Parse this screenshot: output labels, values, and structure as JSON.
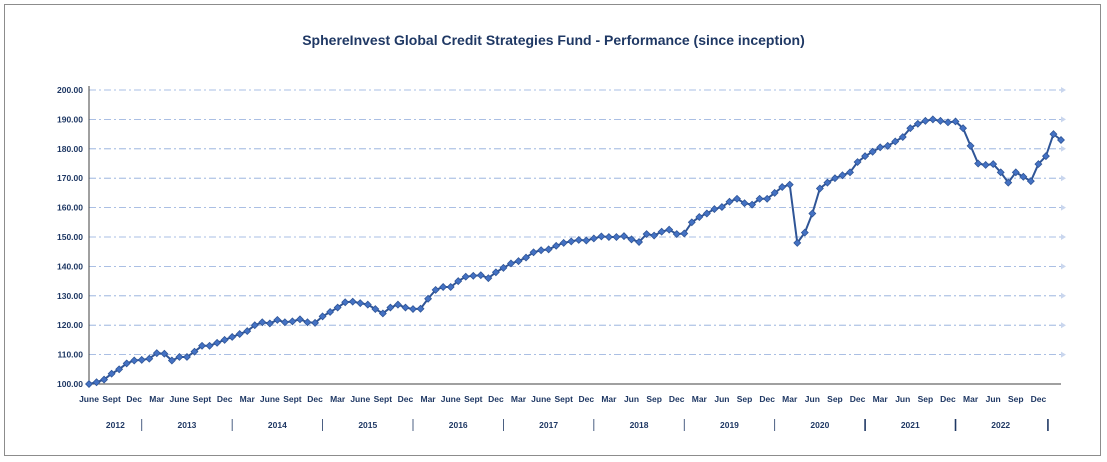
{
  "chart_data": {
    "type": "line",
    "title": "SphereInvest Global Credit Strategies Fund - Performance (since inception)",
    "xlabel": "",
    "ylabel": "",
    "ylim": [
      100,
      200
    ],
    "yticks": [
      "100.00",
      "110.00",
      "120.00",
      "130.00",
      "140.00",
      "150.00",
      "160.00",
      "170.00",
      "180.00",
      "190.00",
      "200.00"
    ],
    "grid": true,
    "legend": "none",
    "colors": {
      "line": "#2f5597",
      "marker": "#4472c4",
      "grid": "#8eaadb",
      "text": "#1f3864"
    },
    "x_tick_labels": [
      "June",
      "Sept",
      "Dec",
      "Mar",
      "June",
      "Sept",
      "Dec",
      "Mar",
      "June",
      "Sept",
      "Dec",
      "Mar",
      "June",
      "Sept",
      "Dec",
      "Mar",
      "June",
      "Sept",
      "Dec",
      "Mar",
      "June",
      "Sept",
      "Dec",
      "Mar",
      "Jun",
      "Sep",
      "Dec",
      "Mar",
      "Jun",
      "Sep",
      "Dec",
      "Mar",
      "Jun",
      "Sep",
      "Dec",
      "Mar",
      "Jun",
      "Sep",
      "Dec",
      "Mar",
      "Jun",
      "Sep",
      "Dec"
    ],
    "years": [
      "2012",
      "2013",
      "2014",
      "2015",
      "2016",
      "2017",
      "2018",
      "2019",
      "2020",
      "2021",
      "2022"
    ],
    "start_month": "2012-06",
    "series": [
      {
        "name": "",
        "values": [
          100.0,
          100.6,
          101.5,
          103.5,
          105.0,
          107.0,
          108.0,
          108.2,
          108.6,
          110.5,
          110.3,
          108.0,
          109.2,
          109.2,
          111.0,
          113.0,
          113.0,
          114.0,
          115.0,
          116.0,
          117.0,
          118.0,
          120.0,
          121.0,
          120.6,
          121.8,
          121.0,
          121.3,
          122.0,
          121.0,
          120.8,
          123.0,
          124.5,
          126.0,
          127.8,
          128.0,
          127.5,
          127.0,
          125.5,
          124.0,
          126.0,
          127.0,
          126.0,
          125.5,
          125.6,
          129.0,
          132.0,
          133.0,
          133.0,
          135.0,
          136.5,
          136.8,
          137.0,
          136.0,
          138.0,
          139.5,
          141.0,
          141.8,
          143.0,
          144.8,
          145.5,
          145.8,
          147.0,
          148.0,
          148.5,
          149.0,
          148.8,
          149.5,
          150.2,
          150.0,
          150.0,
          150.3,
          149.2,
          148.3,
          151.0,
          150.5,
          151.8,
          152.5,
          151.0,
          151.2,
          155.0,
          156.8,
          158.0,
          159.5,
          160.2,
          162.0,
          163.0,
          161.5,
          161.0,
          163.0,
          163.0,
          165.0,
          167.0,
          167.8,
          148.0,
          151.5,
          158.0,
          166.5,
          168.5,
          170.0,
          171.0,
          172.0,
          175.5,
          177.5,
          179.0,
          180.5,
          181.0,
          182.5,
          184.0,
          187.0,
          188.5,
          189.5,
          190.0,
          189.5,
          189.0,
          189.3,
          187.0,
          181.0,
          175.0,
          174.5,
          174.8,
          172.0,
          168.5,
          172.0,
          170.5,
          169.0,
          174.8,
          177.5,
          185.0,
          183.0
        ]
      }
    ]
  }
}
